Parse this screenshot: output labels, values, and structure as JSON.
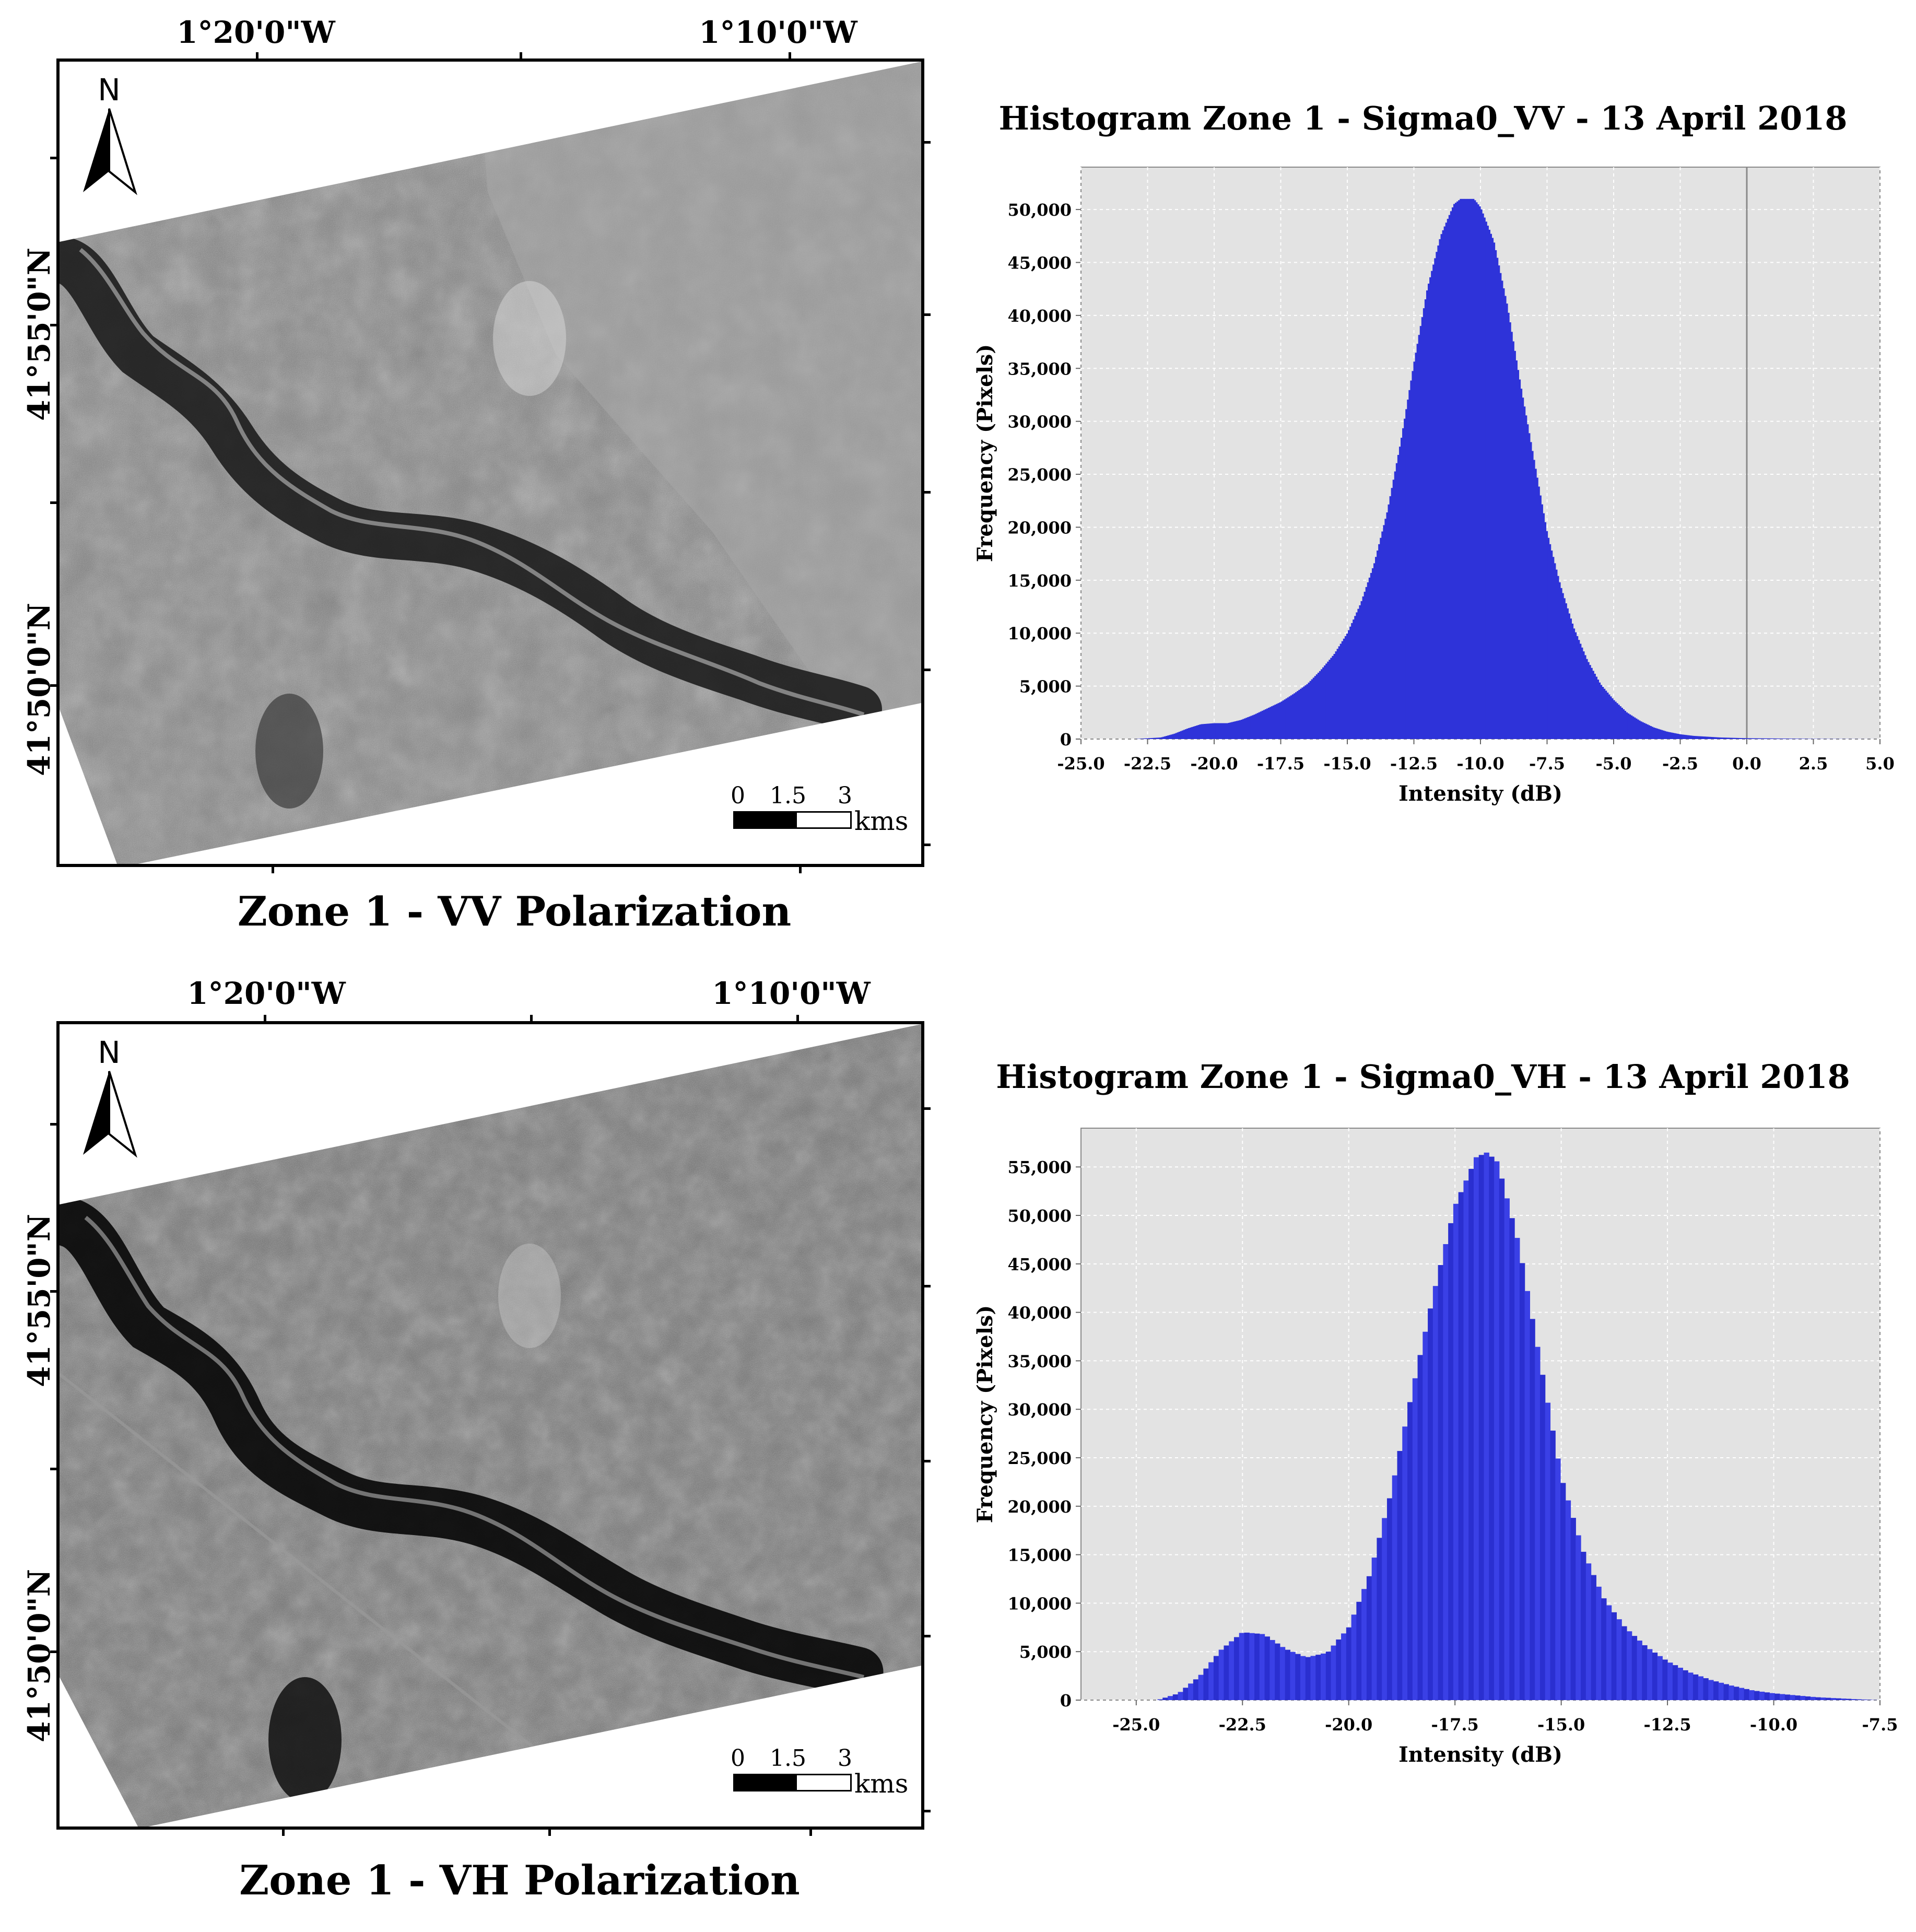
{
  "panels": [
    {
      "map": {
        "lon_labels": [
          "1°20'0\"W",
          "1°10'0\"W"
        ],
        "lat_labels": [
          "41°55'0\"N",
          "41°50'0\"N"
        ],
        "north_label": "N",
        "scale_ticks": [
          "0",
          "1.5",
          "3"
        ],
        "scale_unit": "kms",
        "caption": "Zone 1 - VV Polarization"
      }
    },
    {
      "map": {
        "lon_labels": [
          "1°20'0\"W",
          "1°10'0\"W"
        ],
        "lat_labels": [
          "41°55'0\"N",
          "41°50'0\"N"
        ],
        "north_label": "N",
        "scale_ticks": [
          "0",
          "1.5",
          "3"
        ],
        "scale_unit": "kms",
        "caption": "Zone 1 - VH Polarization"
      }
    }
  ],
  "colors": {
    "histogram_fill": "#2e33d9",
    "plot_bg": "#e3e3e3",
    "grid": "#ffffff"
  },
  "chart_data": [
    {
      "type": "area",
      "title": "Histogram Zone 1 - Sigma0_VV - 13 April 2018",
      "xlabel": "Intensity (dB)",
      "ylabel": "Frequency (Pixels)",
      "xlim": [
        -25.0,
        5.0
      ],
      "ylim": [
        0,
        54000
      ],
      "xticks": [
        "-25.0",
        "-22.5",
        "-20.0",
        "-17.5",
        "-15.0",
        "-12.5",
        "-10.0",
        "-7.5",
        "-5.0",
        "-2.5",
        "0.0",
        "2.5",
        "5.0"
      ],
      "yticks": [
        "0",
        "5,000",
        "10,000",
        "15,000",
        "20,000",
        "25,000",
        "30,000",
        "35,000",
        "40,000",
        "45,000",
        "50,000"
      ],
      "x": [
        -25.0,
        -23.0,
        -22.0,
        -21.5,
        -21.0,
        -20.5,
        -20.0,
        -19.5,
        -19.0,
        -18.5,
        -18.0,
        -17.5,
        -17.0,
        -16.5,
        -16.0,
        -15.5,
        -15.0,
        -14.5,
        -14.0,
        -13.5,
        -13.0,
        -12.5,
        -12.0,
        -11.5,
        -11.0,
        -10.75,
        -10.5,
        -10.25,
        -10.0,
        -9.5,
        -9.0,
        -8.5,
        -8.0,
        -7.5,
        -7.0,
        -6.5,
        -6.0,
        -5.5,
        -5.0,
        -4.5,
        -4.0,
        -3.5,
        -3.0,
        -2.5,
        -2.0,
        -1.0,
        0.0,
        2.5,
        5.0
      ],
      "values": [
        0,
        0,
        150,
        500,
        1000,
        1400,
        1500,
        1500,
        1800,
        2300,
        2900,
        3500,
        4300,
        5200,
        6500,
        8000,
        10000,
        12800,
        16500,
        21500,
        28000,
        35500,
        42500,
        47500,
        50500,
        51000,
        51000,
        51000,
        50200,
        47000,
        41000,
        33500,
        26500,
        19500,
        14500,
        10500,
        7500,
        5200,
        3700,
        2500,
        1700,
        1100,
        700,
        450,
        300,
        150,
        80,
        20,
        0
      ],
      "vline": 0.0
    },
    {
      "type": "bar",
      "title": "Histogram Zone 1 - Sigma0_VH - 13 April 2018",
      "xlabel": "Intensity (dB)",
      "ylabel": "Frequency (Pixels)",
      "xlim": [
        -26.3,
        -7.5
      ],
      "ylim": [
        0,
        59000
      ],
      "xticks": [
        "-25.0",
        "-22.5",
        "-20.0",
        "-17.5",
        "-15.0",
        "-12.5",
        "-10.0",
        "-7.5"
      ],
      "yticks": [
        "0",
        "5,000",
        "10,000",
        "15,000",
        "20,000",
        "25,000",
        "30,000",
        "35,000",
        "40,000",
        "45,000",
        "50,000",
        "55,000"
      ],
      "x": [
        -26.3,
        -24.5,
        -24.0,
        -23.5,
        -23.0,
        -22.5,
        -22.0,
        -21.5,
        -21.0,
        -20.5,
        -20.0,
        -19.5,
        -19.0,
        -18.5,
        -18.0,
        -17.5,
        -17.0,
        -16.75,
        -16.5,
        -16.0,
        -15.5,
        -15.0,
        -14.5,
        -14.0,
        -13.5,
        -13.0,
        -12.5,
        -12.0,
        -11.5,
        -11.0,
        -10.5,
        -10.0,
        -9.0,
        -8.0,
        -7.5
      ],
      "values": [
        0,
        0,
        700,
        2500,
        5200,
        7000,
        6800,
        5300,
        4400,
        4900,
        7500,
        13000,
        21500,
        32000,
        42000,
        51000,
        56000,
        56500,
        55500,
        47000,
        35000,
        23000,
        15500,
        10500,
        7500,
        5500,
        4000,
        2900,
        2100,
        1500,
        1000,
        700,
        300,
        80,
        0
      ]
    }
  ]
}
